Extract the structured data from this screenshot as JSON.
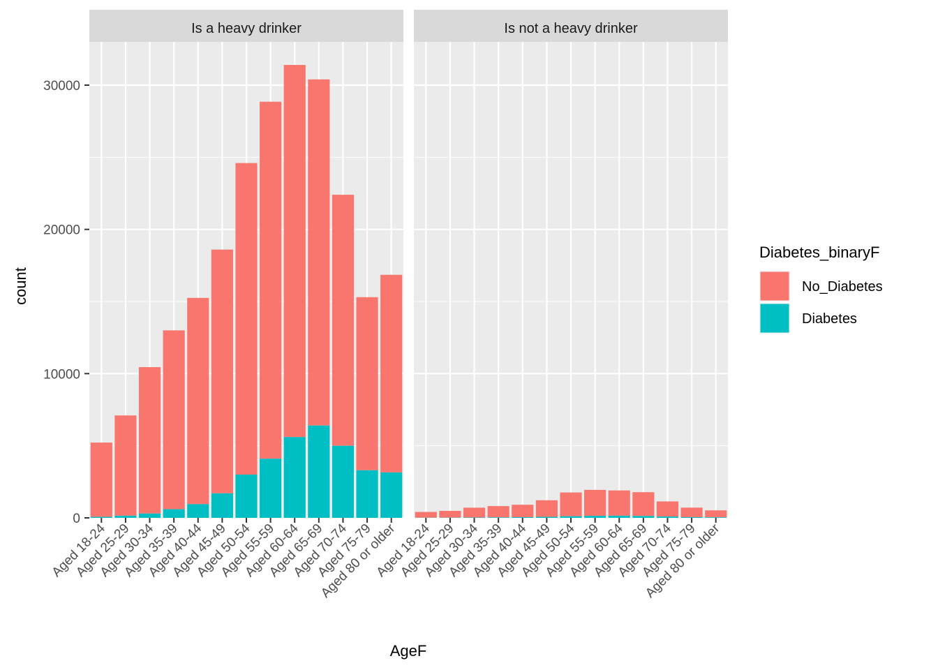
{
  "chart_data": {
    "type": "bar",
    "stacked": true,
    "xlabel": "AgeF",
    "ylabel": "count",
    "ylim": [
      0,
      33000
    ],
    "yticks": [
      0,
      10000,
      20000,
      30000
    ],
    "grid": true,
    "legend": {
      "title": "Diabetes_binaryF",
      "position": "right",
      "entries": [
        "No_Diabetes",
        "Diabetes"
      ]
    },
    "colors": {
      "No_Diabetes": "#F8766D",
      "Diabetes": "#00BFC4"
    },
    "categories": [
      "Aged 18-24",
      "Aged 25-29",
      "Aged 30-34",
      "Aged 35-39",
      "Aged 40-44",
      "Aged 45-49",
      "Aged 50-54",
      "Aged 55-59",
      "Aged 60-64",
      "Aged 65-69",
      "Aged 70-74",
      "Aged 75-79",
      "Aged 80 or older"
    ],
    "panels": [
      {
        "title": "Is a heavy drinker",
        "series": [
          {
            "name": "No_Diabetes",
            "values": [
              5150,
              6950,
              10150,
              12400,
              14300,
              16900,
              21600,
              24750,
              25800,
              24000,
              17400,
              12000,
              13700
            ]
          },
          {
            "name": "Diabetes",
            "values": [
              70,
              150,
              300,
              600,
              950,
              1700,
              3000,
              4100,
              5600,
              6400,
              5000,
              3300,
              3150
            ]
          }
        ]
      },
      {
        "title": "Is not a heavy drinker",
        "series": [
          {
            "name": "No_Diabetes",
            "values": [
              400,
              470,
              680,
              780,
              860,
              1150,
              1650,
              1800,
              1750,
              1650,
              1050,
              660,
              480
            ]
          },
          {
            "name": "Diabetes",
            "values": [
              10,
              15,
              25,
              35,
              50,
              70,
              110,
              140,
              150,
              130,
              90,
              50,
              40
            ]
          }
        ]
      }
    ]
  }
}
